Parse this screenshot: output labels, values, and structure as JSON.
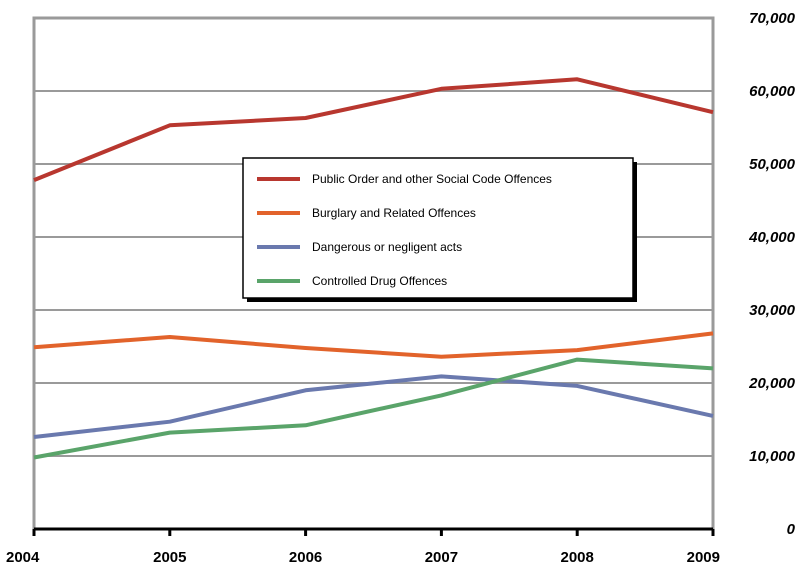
{
  "chart_data": {
    "type": "line",
    "title": "",
    "xlabel": "",
    "ylabel": "",
    "x": [
      "2004",
      "2005",
      "2006",
      "2007",
      "2008",
      "2009"
    ],
    "y_ticks": [
      "0",
      "10,000",
      "20,000",
      "30,000",
      "40,000",
      "50,000",
      "60,000",
      "70,000"
    ],
    "ylim": [
      0,
      70000
    ],
    "y_axis_side": "right",
    "grid": true,
    "legend_position": "center",
    "series": [
      {
        "name": "Public Order and other Social Code Offences",
        "color": "#b8372f",
        "values": [
          47800,
          55300,
          56300,
          60300,
          61600,
          57100
        ]
      },
      {
        "name": "Burglary and Related Offences",
        "color": "#e2632b",
        "values": [
          24900,
          26300,
          24800,
          23600,
          24500,
          26800
        ]
      },
      {
        "name": "Dangerous or negligent acts",
        "color": "#6a79ae",
        "values": [
          12600,
          14700,
          19000,
          20900,
          19600,
          15500
        ]
      },
      {
        "name": "Controlled Drug Offences",
        "color": "#5aa46a",
        "values": [
          9800,
          13200,
          14200,
          18300,
          23200,
          22000
        ]
      }
    ]
  }
}
